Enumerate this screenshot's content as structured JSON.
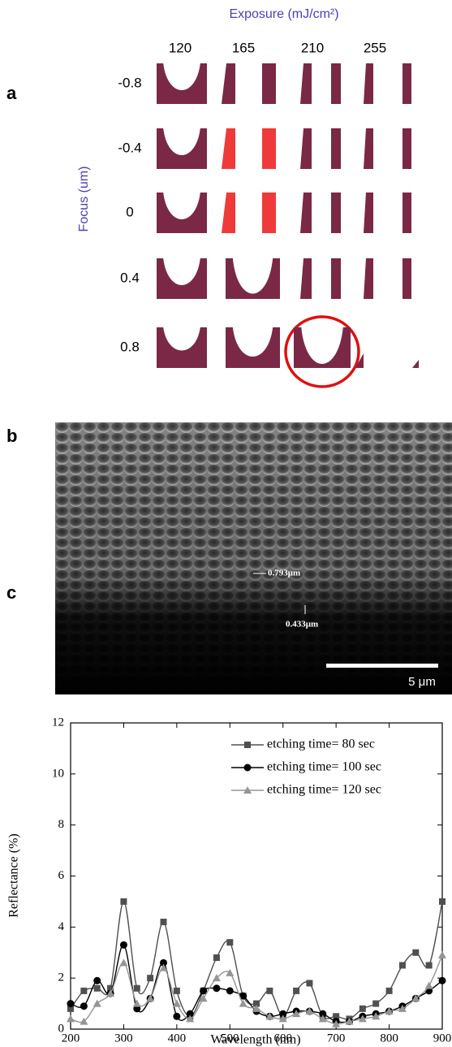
{
  "panel_labels": [
    "a",
    "b",
    "c"
  ],
  "panel_a": {
    "x_title": "Exposure (mJ/cm²)",
    "y_title": "Focus (um)",
    "columns": [
      "120",
      "165",
      "210",
      "255"
    ],
    "rows": [
      "-0.8",
      "-0.4",
      "0",
      "0.4",
      "0.8"
    ]
  },
  "panel_b": {
    "annotations": [
      "0.793μm",
      "0.433μm"
    ],
    "scale_bar": "5 μm"
  },
  "chart_data": {
    "type": "line",
    "x_label": "Wavelength (nm)",
    "y_label": "Reflectance (%)",
    "x": [
      200,
      225,
      250,
      275,
      300,
      325,
      350,
      375,
      400,
      425,
      450,
      475,
      500,
      525,
      550,
      575,
      600,
      625,
      650,
      675,
      700,
      725,
      750,
      775,
      800,
      825,
      850,
      875,
      900
    ],
    "series": [
      {
        "name": "etching time= 80 sec",
        "color": "#505050",
        "marker": "square",
        "values": [
          0.8,
          1.5,
          1.6,
          1.6,
          5.0,
          1.6,
          2.0,
          4.2,
          1.5,
          0.5,
          1.5,
          2.8,
          3.4,
          1.3,
          1.0,
          1.5,
          0.5,
          1.5,
          1.8,
          0.5,
          0.5,
          0.4,
          0.8,
          1.0,
          1.5,
          2.5,
          3.0,
          2.5,
          5.0
        ]
      },
      {
        "name": "etching time= 100 sec",
        "color": "#000000",
        "marker": "circle",
        "values": [
          1.0,
          0.9,
          1.9,
          1.4,
          3.3,
          0.8,
          1.2,
          2.6,
          0.5,
          0.6,
          1.5,
          1.6,
          1.5,
          1.3,
          0.7,
          0.5,
          0.6,
          0.7,
          0.7,
          0.6,
          0.3,
          0.3,
          0.5,
          0.6,
          0.7,
          0.9,
          1.2,
          1.5,
          1.9
        ]
      },
      {
        "name": "etching time= 120 sec",
        "color": "#959595",
        "marker": "triangle",
        "values": [
          0.4,
          0.3,
          1.0,
          1.4,
          2.6,
          1.0,
          1.2,
          2.4,
          1.0,
          0.4,
          1.2,
          2.0,
          2.2,
          1.0,
          0.8,
          0.5,
          0.4,
          0.6,
          0.7,
          0.4,
          0.2,
          0.3,
          0.4,
          0.5,
          0.7,
          0.8,
          1.2,
          1.7,
          2.9
        ]
      }
    ],
    "xlim": [
      200,
      900
    ],
    "ylim": [
      0,
      12
    ],
    "xticks": [
      200,
      300,
      400,
      500,
      600,
      700,
      800,
      900
    ],
    "yticks": [
      0,
      2,
      4,
      6,
      8,
      10,
      12
    ],
    "legend": "upper right"
  }
}
